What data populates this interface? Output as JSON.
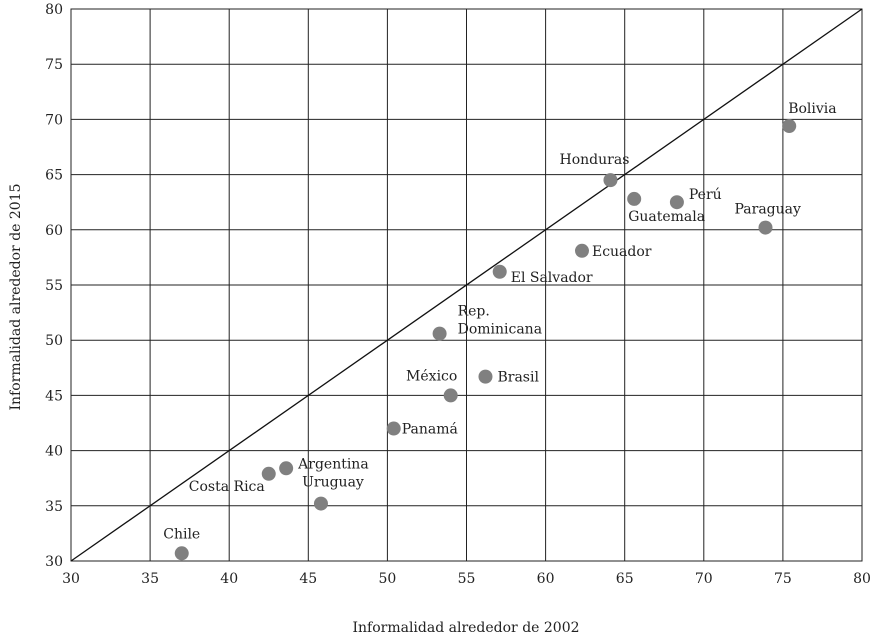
{
  "chart_data": {
    "type": "scatter",
    "xlabel": "Informalidad alrededor de 2002",
    "ylabel": "Informalidad alrededor de 2015",
    "xlim": [
      30,
      80
    ],
    "ylim": [
      30,
      80
    ],
    "xticks": [
      30,
      35,
      40,
      45,
      50,
      55,
      60,
      65,
      70,
      75,
      80
    ],
    "yticks": [
      30,
      35,
      40,
      45,
      50,
      55,
      60,
      65,
      70,
      75,
      80
    ],
    "grid": true,
    "reference_line": {
      "from": [
        30,
        30
      ],
      "to": [
        80,
        80
      ]
    },
    "point_color": "#808080",
    "points": [
      {
        "label": "Bolivia",
        "x": 75.4,
        "y": 69.4
      },
      {
        "label": "Honduras",
        "x": 64.1,
        "y": 64.5
      },
      {
        "label": "Guatemala",
        "x": 65.6,
        "y": 62.8
      },
      {
        "label": "Perú",
        "x": 68.3,
        "y": 62.5
      },
      {
        "label": "Paraguay",
        "x": 73.9,
        "y": 60.2
      },
      {
        "label": "Ecuador",
        "x": 62.3,
        "y": 58.1
      },
      {
        "label": "El Salvador",
        "x": 57.1,
        "y": 56.2
      },
      {
        "label": "Rep. Dominicana",
        "x": 53.3,
        "y": 50.6
      },
      {
        "label": "México",
        "x": 54.0,
        "y": 45.0
      },
      {
        "label": "Brasil",
        "x": 56.2,
        "y": 46.7
      },
      {
        "label": "Panamá",
        "x": 50.4,
        "y": 42.0
      },
      {
        "label": "Argentina",
        "x": 43.6,
        "y": 38.4
      },
      {
        "label": "Costa Rica",
        "x": 42.5,
        "y": 37.9
      },
      {
        "label": "Uruguay",
        "x": 45.8,
        "y": 35.2
      },
      {
        "label": "Chile",
        "x": 37.0,
        "y": 30.7
      }
    ]
  }
}
